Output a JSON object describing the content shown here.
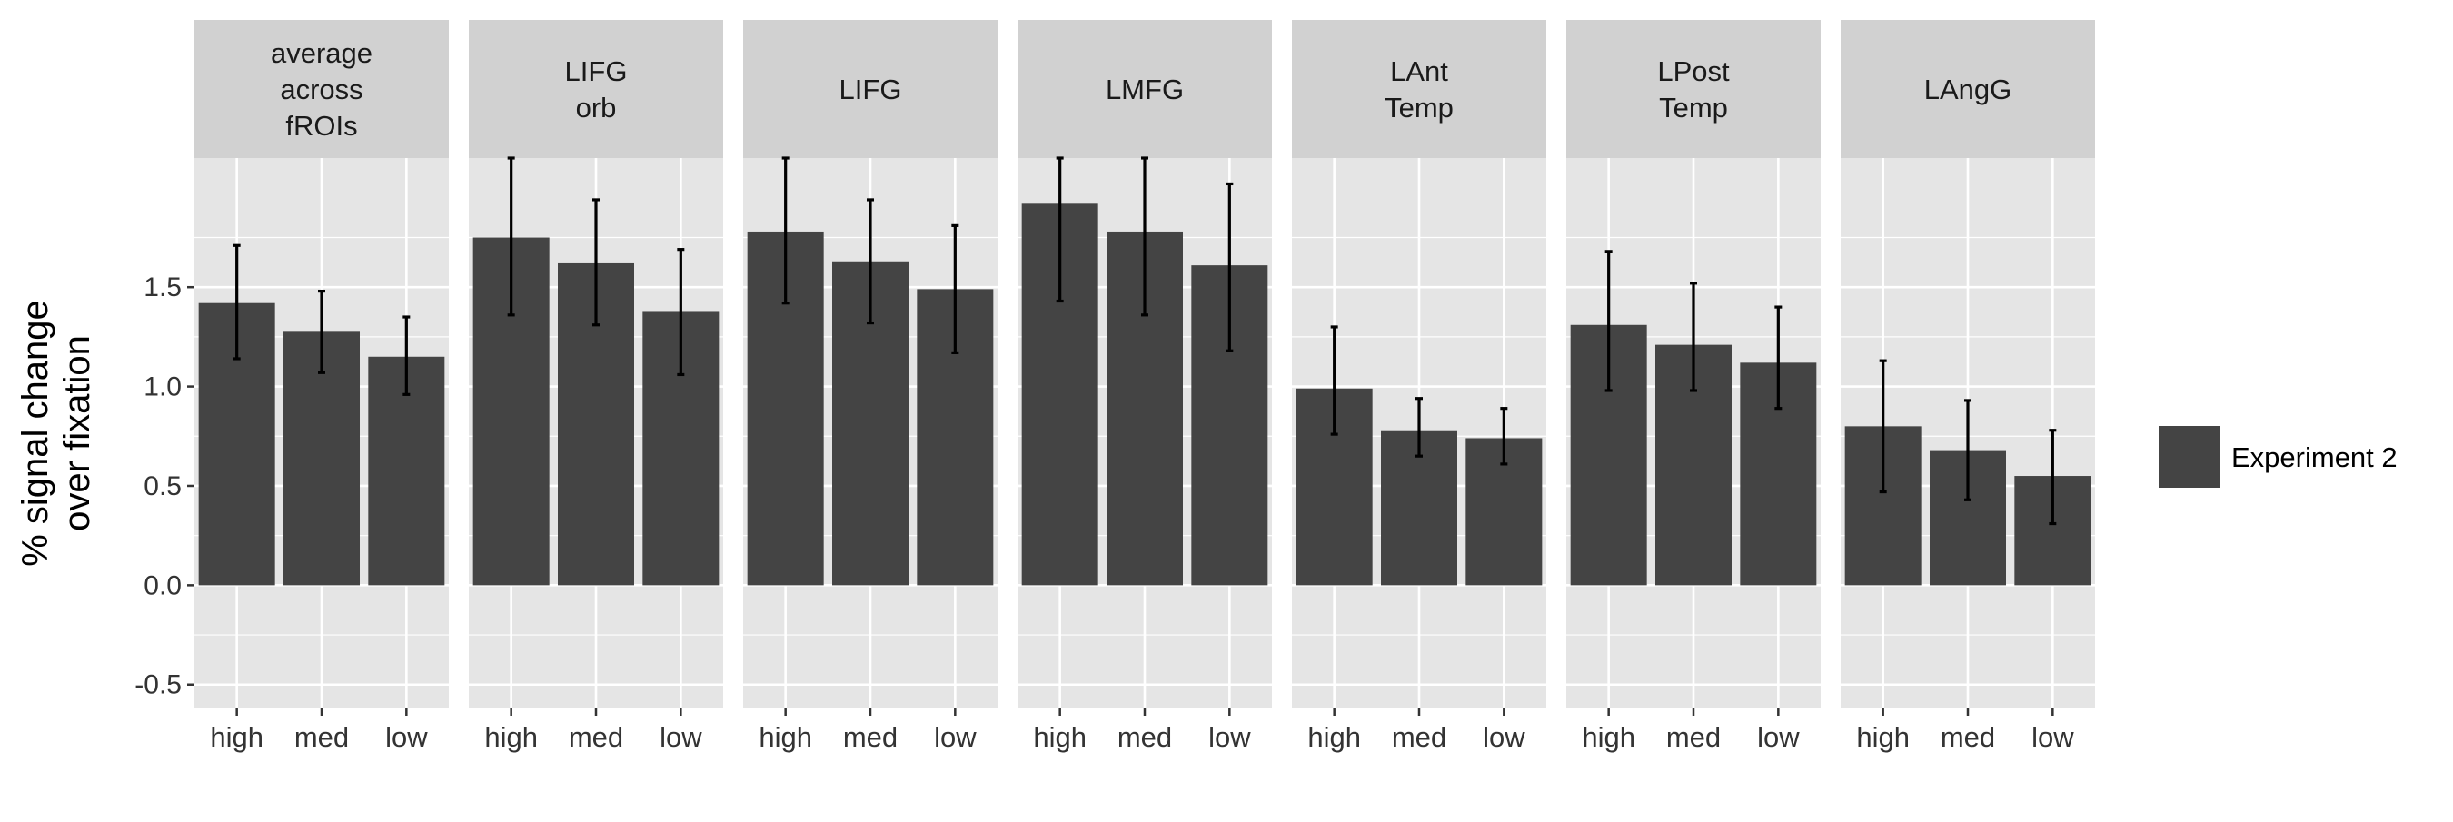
{
  "chart_data": {
    "type": "bar",
    "ylabel_lines": [
      "% signal change",
      "over fixation"
    ],
    "xlabel": "",
    "ylim": [
      -0.62,
      2.15
    ],
    "yticks": [
      -0.5,
      0.0,
      0.5,
      1.0,
      1.5
    ],
    "ytick_labels": [
      "-0.5",
      "0.0",
      "0.5",
      "1.0",
      "1.5"
    ],
    "categories": [
      "high",
      "med",
      "low"
    ],
    "legend": {
      "placement": "right",
      "label": "Experiment 2",
      "color": "#444444"
    },
    "colors": {
      "panel_bg": "#e5e5e5",
      "strip_bg": "#d1d1d1",
      "grid": "#ffffff",
      "bar": "#444444",
      "errorbar": "#000000",
      "text": "#333333"
    },
    "panels": [
      {
        "title_lines": [
          "average",
          "across",
          "fROIs"
        ],
        "values": [
          1.42,
          1.28,
          1.15
        ],
        "err_low": [
          1.14,
          1.07,
          0.96
        ],
        "err_high": [
          1.71,
          1.48,
          1.35
        ]
      },
      {
        "title_lines": [
          "LIFG",
          "orb"
        ],
        "values": [
          1.75,
          1.62,
          1.38
        ],
        "err_low": [
          1.36,
          1.31,
          1.06
        ],
        "err_high": [
          2.15,
          1.94,
          1.69
        ]
      },
      {
        "title_lines": [
          "LIFG"
        ],
        "values": [
          1.78,
          1.63,
          1.49
        ],
        "err_low": [
          1.42,
          1.32,
          1.17
        ],
        "err_high": [
          2.15,
          1.94,
          1.81
        ]
      },
      {
        "title_lines": [
          "LMFG"
        ],
        "values": [
          1.92,
          1.78,
          1.61
        ],
        "err_low": [
          1.43,
          1.36,
          1.18
        ],
        "err_high": [
          2.15,
          2.15,
          2.02
        ]
      },
      {
        "title_lines": [
          "LAnt",
          "Temp"
        ],
        "values": [
          0.99,
          0.78,
          0.74
        ],
        "err_low": [
          0.76,
          0.65,
          0.61
        ],
        "err_high": [
          1.3,
          0.94,
          0.89
        ]
      },
      {
        "title_lines": [
          "LPost",
          "Temp"
        ],
        "values": [
          1.31,
          1.21,
          1.12
        ],
        "err_low": [
          0.98,
          0.98,
          0.89
        ],
        "err_high": [
          1.68,
          1.52,
          1.4
        ]
      },
      {
        "title_lines": [
          "LAngG"
        ],
        "values": [
          0.8,
          0.68,
          0.55
        ],
        "err_low": [
          0.47,
          0.43,
          0.31
        ],
        "err_high": [
          1.13,
          0.93,
          0.78
        ]
      }
    ]
  }
}
